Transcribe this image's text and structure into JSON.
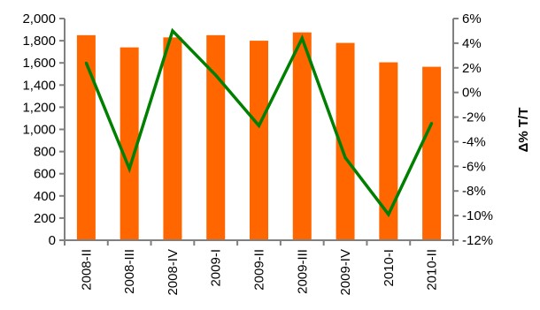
{
  "chart_data": {
    "type": "bar",
    "categories": [
      "2008-II",
      "2008-III",
      "2008-IV",
      "2009-I",
      "2009-II",
      "2009-III",
      "2009-IV",
      "2010-I",
      "2010-II"
    ],
    "series": [
      {
        "type": "bar",
        "axis": "left",
        "color": "#FF6600",
        "values": [
          1850,
          1740,
          1830,
          1850,
          1800,
          1875,
          1780,
          1605,
          1565
        ]
      },
      {
        "type": "line",
        "axis": "right",
        "color": "#008000",
        "values": [
          2.4,
          -6.2,
          5.0,
          1.4,
          -2.7,
          4.4,
          -5.3,
          -9.9,
          -2.5
        ]
      }
    ],
    "title": "",
    "xlabel": "",
    "ylabel": "",
    "y2label": "Δ% T/T",
    "ylim": [
      0,
      2000
    ],
    "yticks": [
      0,
      200,
      400,
      600,
      800,
      1000,
      1200,
      1400,
      1600,
      1800,
      2000
    ],
    "ytick_labels": [
      "0",
      "200",
      "400",
      "600",
      "800",
      "1,000",
      "1,200",
      "1,400",
      "1,600",
      "1,800",
      "2,000"
    ],
    "y2lim": [
      -12,
      6
    ],
    "y2ticks": [
      -12,
      -10,
      -8,
      -6,
      -4,
      -2,
      0,
      2,
      4,
      6
    ],
    "y2tick_labels": [
      "-12%",
      "-10%",
      "-8%",
      "-6%",
      "-4%",
      "-2%",
      "0%",
      "2%",
      "4%",
      "6%"
    ],
    "grid": false,
    "legend": "none"
  }
}
